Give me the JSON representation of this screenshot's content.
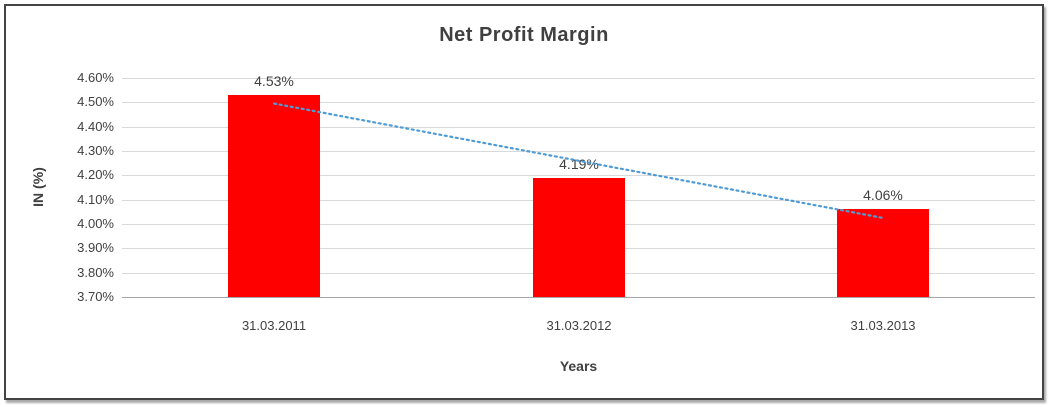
{
  "chart_data": {
    "type": "bar",
    "title": "Net Profit Margin",
    "xlabel": "Years",
    "ylabel": "IN (%)",
    "categories": [
      "31.03.2011",
      "31.03.2012",
      "31.03.2013"
    ],
    "values": [
      4.53,
      4.19,
      4.06
    ],
    "value_labels": [
      "4.53%",
      "4.19%",
      "4.06%"
    ],
    "ylim": [
      3.7,
      4.6
    ],
    "ytick_step": 0.1,
    "ytick_labels": [
      "3.70%",
      "3.80%",
      "3.90%",
      "4.00%",
      "4.10%",
      "4.20%",
      "4.30%",
      "4.40%",
      "4.50%",
      "4.60%"
    ],
    "grid": true,
    "legend": false,
    "bar_color": "#ff0000",
    "trendline": {
      "type": "linear",
      "style": "dotted",
      "color": "#4f9bd5"
    },
    "gridline_color": "#d9d9d9",
    "axis_line_color": "#a6a6a6",
    "text_color": "#404040"
  }
}
